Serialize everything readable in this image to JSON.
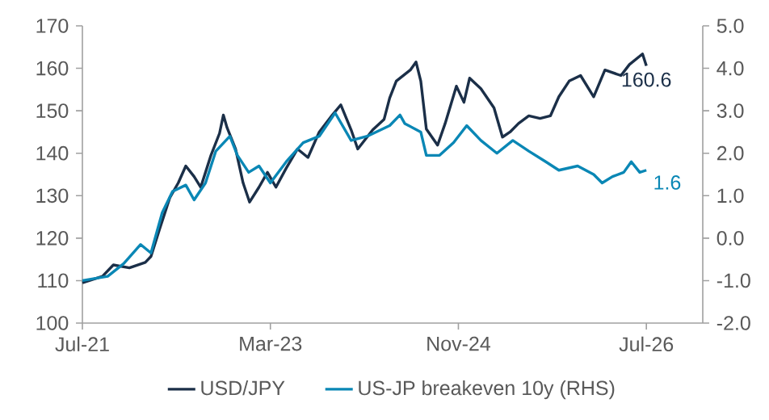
{
  "chart_data": {
    "type": "line",
    "xlim": [
      "2021-07",
      "2027-01"
    ],
    "xticks": [
      {
        "value": "2021-07",
        "label": "Jul-21"
      },
      {
        "value": "2023-03",
        "label": "Mar-23"
      },
      {
        "value": "2024-11",
        "label": "Nov-24"
      },
      {
        "value": "2026-07",
        "label": "Jul-26"
      }
    ],
    "ylim": [
      100,
      170
    ],
    "yticks": [
      100,
      110,
      120,
      130,
      140,
      150,
      160,
      170
    ],
    "y2lim": [
      -2,
      5
    ],
    "y2ticks": [
      {
        "value": -2,
        "label": "-2.0"
      },
      {
        "value": -1,
        "label": "-1.0"
      },
      {
        "value": 0,
        "label": "0.0"
      },
      {
        "value": 1,
        "label": "1.0"
      },
      {
        "value": 2,
        "label": "2.0"
      },
      {
        "value": 3,
        "label": "3.0"
      },
      {
        "value": 4,
        "label": "4.0"
      },
      {
        "value": 5,
        "label": "5.0"
      }
    ],
    "legend": "bottom",
    "marker": "none",
    "line_style": "solid",
    "series": [
      {
        "name": "USD/JPY",
        "color": "#1b2f48",
        "x": [
          "2021-07-01",
          "2021-09-05",
          "2021-10-10",
          "2021-12-01",
          "2022-01-22",
          "2022-02-10",
          "2022-03-07",
          "2022-04-10",
          "2022-05-07",
          "2022-06-01",
          "2022-06-28",
          "2022-07-19",
          "2022-08-22",
          "2022-09-19",
          "2022-10-01",
          "2022-10-13",
          "2022-11-10",
          "2022-12-04",
          "2022-12-25",
          "2023-01-25",
          "2023-02-22",
          "2023-03-19",
          "2023-04-22",
          "2023-05-28",
          "2023-07-01",
          "2023-08-07",
          "2023-09-19",
          "2023-10-16",
          "2023-11-19",
          "2023-12-10",
          "2024-01-28",
          "2024-03-04",
          "2024-03-22",
          "2024-04-13",
          "2024-05-28",
          "2024-06-16",
          "2024-07-01",
          "2024-07-19",
          "2024-08-25",
          "2024-09-19",
          "2024-10-25",
          "2024-11-19",
          "2024-12-07",
          "2025-01-13",
          "2025-02-25",
          "2025-03-22",
          "2025-04-16",
          "2025-05-13",
          "2025-06-16",
          "2025-07-22",
          "2025-08-25",
          "2025-09-22",
          "2025-10-25",
          "2025-12-01",
          "2026-01-13",
          "2026-02-19",
          "2026-04-10",
          "2026-05-07",
          "2026-06-19",
          "2026-07-01"
        ],
        "values": [
          109.5,
          111,
          113.7,
          113,
          114.3,
          115.7,
          122,
          129.5,
          133,
          137,
          134.5,
          132,
          139.6,
          144.7,
          149,
          146,
          141,
          133,
          128.5,
          132,
          135.5,
          132,
          136.5,
          141,
          139,
          145,
          149,
          151.4,
          145.5,
          141,
          145.5,
          148,
          153,
          157,
          159.6,
          161.5,
          157,
          145.7,
          141.9,
          147,
          155.8,
          152,
          157.7,
          155.2,
          150.7,
          143.8,
          145,
          147,
          148.8,
          148.2,
          148.8,
          153.3,
          157,
          158.3,
          153.3,
          159.6,
          158.3,
          160.9,
          163.4,
          160.6
        ]
      },
      {
        "name": "US-JP breakeven 10y (RHS)",
        "color": "#0a87b5",
        "axis": "y2",
        "x": [
          "2021-07-01",
          "2021-09-22",
          "2021-11-13",
          "2022-01-07",
          "2022-02-10",
          "2022-03-16",
          "2022-04-19",
          "2022-06-01",
          "2022-06-28",
          "2022-08-04",
          "2022-09-07",
          "2022-10-22",
          "2022-11-16",
          "2022-12-22",
          "2023-01-25",
          "2023-03-01",
          "2023-04-22",
          "2023-06-16",
          "2023-08-07",
          "2023-09-28",
          "2023-11-19",
          "2024-01-10",
          "2024-03-22",
          "2024-04-25",
          "2024-05-10",
          "2024-07-01",
          "2024-07-19",
          "2024-09-01",
          "2024-10-16",
          "2024-11-28",
          "2025-01-13",
          "2025-03-04",
          "2025-04-25",
          "2025-06-16",
          "2025-08-10",
          "2025-09-22",
          "2025-11-22",
          "2026-01-13",
          "2026-02-10",
          "2026-03-13",
          "2026-04-19",
          "2026-05-13",
          "2026-06-10",
          "2026-07-01"
        ],
        "values": [
          -1.0,
          -0.9,
          -0.6,
          -0.15,
          -0.35,
          0.6,
          1.1,
          1.25,
          0.9,
          1.3,
          2.05,
          2.4,
          1.95,
          1.55,
          1.7,
          1.3,
          1.8,
          2.25,
          2.4,
          2.95,
          2.3,
          2.4,
          2.65,
          2.9,
          2.7,
          2.5,
          1.95,
          1.95,
          2.25,
          2.65,
          2.3,
          2.0,
          2.3,
          2.05,
          1.8,
          1.6,
          1.7,
          1.5,
          1.3,
          1.45,
          1.55,
          1.8,
          1.55,
          1.6
        ]
      }
    ],
    "annotations": [
      "160.6",
      "1.6"
    ]
  }
}
